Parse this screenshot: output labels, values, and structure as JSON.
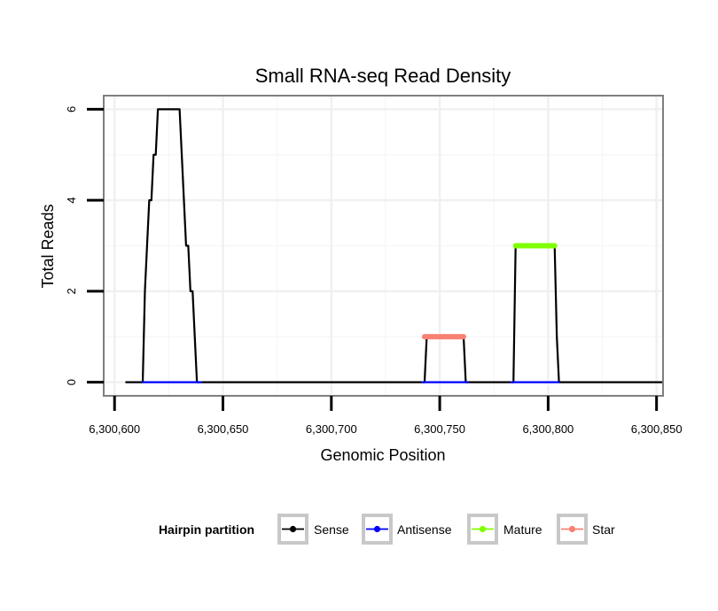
{
  "chart_data": {
    "type": "line",
    "title": "Small RNA-seq Read Density",
    "xlabel": "Genomic Position",
    "ylabel": "Total Reads",
    "xlim": [
      6300595,
      6300853
    ],
    "ylim": [
      -0.3,
      6.3
    ],
    "x_ticks": [
      6300600,
      6300650,
      6300700,
      6300750,
      6300800,
      6300850
    ],
    "x_tick_labels": [
      "6,300,600",
      "6,300,650",
      "6,300,700",
      "6,300,750",
      "6,300,800",
      "6,300,850"
    ],
    "y_ticks": [
      0,
      2,
      4,
      6
    ],
    "y_tick_labels": [
      "0",
      "2",
      "4",
      "6"
    ],
    "grid": true,
    "legend": {
      "title": "Hairpin partition",
      "position": "bottom",
      "entries": [
        "Sense",
        "Antisense",
        "Mature",
        "Star"
      ]
    },
    "series": [
      {
        "name": "Sense",
        "color": "#000000",
        "x": [
          6300605,
          6300613,
          6300614,
          6300615,
          6300616,
          6300617,
          6300618,
          6300619,
          6300620,
          6300621,
          6300622,
          6300623,
          6300624,
          6300625,
          6300626,
          6300627,
          6300628,
          6300629,
          6300630,
          6300631,
          6300632,
          6300633,
          6300634,
          6300635,
          6300636,
          6300637,
          6300638,
          6300639,
          6300640,
          6300700,
          6300742,
          6300743,
          6300744,
          6300745,
          6300746,
          6300747,
          6300748,
          6300749,
          6300750,
          6300751,
          6300752,
          6300753,
          6300754,
          6300755,
          6300756,
          6300757,
          6300758,
          6300759,
          6300760,
          6300761,
          6300762,
          6300763,
          6300783,
          6300784,
          6300785,
          6300786,
          6300787,
          6300788,
          6300789,
          6300790,
          6300791,
          6300792,
          6300793,
          6300794,
          6300795,
          6300796,
          6300797,
          6300798,
          6300799,
          6300800,
          6300801,
          6300802,
          6300803,
          6300804,
          6300805,
          6300853
        ],
        "values": [
          0,
          0,
          2,
          3,
          4,
          4,
          5,
          5,
          6,
          6,
          6,
          6,
          6,
          6,
          6,
          6,
          6,
          6,
          6,
          5,
          4,
          3,
          3,
          2,
          2,
          1,
          0,
          0,
          0,
          0,
          0,
          0,
          1,
          1,
          1,
          1,
          1,
          1,
          1,
          1,
          1,
          1,
          1,
          1,
          1,
          1,
          1,
          1,
          1,
          1,
          0,
          0,
          0,
          0,
          3,
          3,
          3,
          3,
          3,
          3,
          3,
          3,
          3,
          3,
          3,
          3,
          3,
          3,
          3,
          3,
          3,
          3,
          3,
          1,
          0,
          0
        ]
      },
      {
        "name": "Antisense",
        "color": "#0000ff",
        "segments": [
          [
            6300613,
            6300640
          ],
          [
            6300742,
            6300763
          ],
          [
            6300783,
            6300805
          ]
        ],
        "value": 0
      },
      {
        "name": "Mature",
        "color": "#7fff00",
        "segments": [
          [
            6300785,
            6300803
          ]
        ],
        "value": 3
      },
      {
        "name": "Star",
        "color": "#fa8072",
        "segments": [
          [
            6300743,
            6300761
          ]
        ],
        "value": 1
      }
    ]
  }
}
